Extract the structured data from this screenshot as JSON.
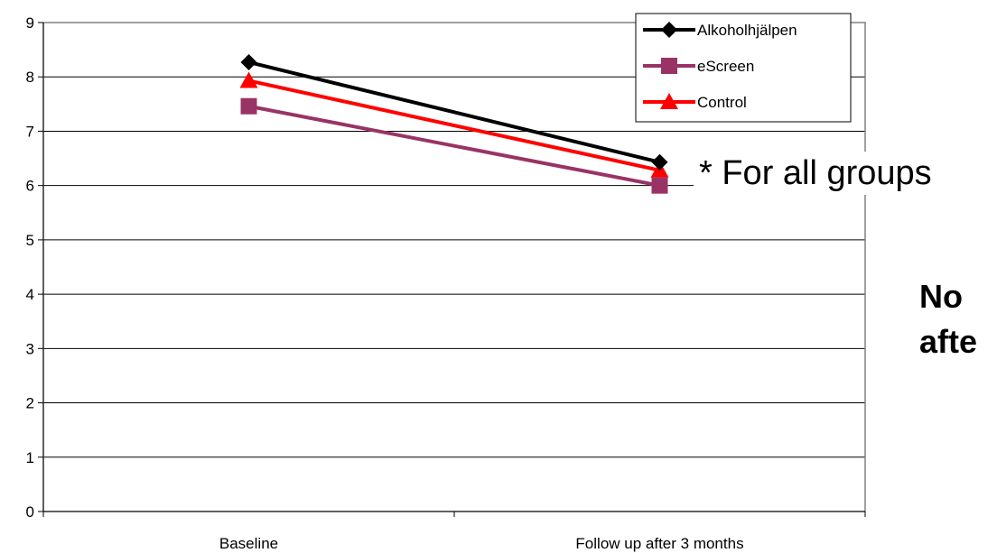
{
  "chart_data": {
    "type": "line",
    "categories": [
      "Baseline",
      "Follow up after 3 months"
    ],
    "ylim": [
      0,
      9
    ],
    "y_ticks": [
      "0",
      "1",
      "2",
      "3",
      "4",
      "5",
      "6",
      "7",
      "8",
      "9"
    ],
    "grid": "horizontal",
    "legend_position": "top-right",
    "series": [
      {
        "name": "Alkoholhjälpen",
        "values": [
          8.27,
          6.43
        ],
        "color": "#000000",
        "marker": "diamond"
      },
      {
        "name": "eScreen",
        "values": [
          7.46,
          6.0
        ],
        "color": "#993366",
        "marker": "square"
      },
      {
        "name": "Control",
        "values": [
          7.93,
          6.28
        ],
        "color": "#ff0000",
        "marker": "triangle"
      }
    ]
  },
  "annotations": {
    "groups_note": "* For all groups",
    "bold_note_line1": "No",
    "bold_note_line2": "afte"
  }
}
